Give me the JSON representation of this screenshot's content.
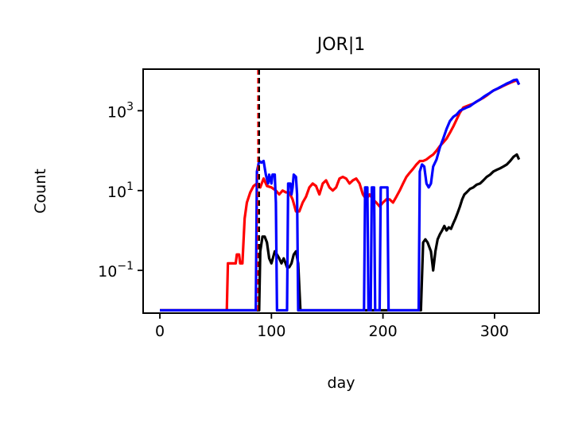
{
  "chart_data": {
    "type": "line",
    "title": "JOR|1",
    "xlabel": "day",
    "ylabel": "Count",
    "xlim": [
      -15,
      340
    ],
    "ylim": [
      0.0085,
      11000
    ],
    "yscale": "log",
    "xticks": [
      {
        "value": 0,
        "label": "0"
      },
      {
        "value": 100,
        "label": "100"
      },
      {
        "value": 200,
        "label": "200"
      },
      {
        "value": 300,
        "label": "300"
      }
    ],
    "yticks": [
      {
        "value": 0.1,
        "base": "10",
        "exp": "−1"
      },
      {
        "value": 10,
        "base": "10",
        "exp": "1"
      },
      {
        "value": 1000,
        "base": "10",
        "exp": "3"
      }
    ],
    "vlines": [
      {
        "x": 88,
        "color": "#ff0000",
        "style": "dashed"
      },
      {
        "x": 89,
        "color": "#000000",
        "style": "dashed"
      }
    ],
    "series": [
      {
        "color": "#ff0000",
        "points": [
          [
            0,
            0.01
          ],
          [
            60,
            0.01
          ],
          [
            61,
            0.15
          ],
          [
            68,
            0.15
          ],
          [
            69,
            0.25
          ],
          [
            71,
            0.25
          ],
          [
            72,
            0.15
          ],
          [
            74,
            0.15
          ],
          [
            76,
            2
          ],
          [
            78,
            5
          ],
          [
            81,
            9
          ],
          [
            84,
            13
          ],
          [
            87,
            15
          ],
          [
            90,
            12
          ],
          [
            93,
            20
          ],
          [
            96,
            13
          ],
          [
            100,
            12
          ],
          [
            104,
            10
          ],
          [
            107,
            8
          ],
          [
            110,
            10
          ],
          [
            113,
            9
          ],
          [
            116,
            9
          ],
          [
            119,
            6
          ],
          [
            122,
            3
          ],
          [
            125,
            3
          ],
          [
            128,
            5
          ],
          [
            131,
            7
          ],
          [
            134,
            12
          ],
          [
            137,
            15
          ],
          [
            140,
            13
          ],
          [
            143,
            8
          ],
          [
            146,
            15
          ],
          [
            149,
            18
          ],
          [
            152,
            12
          ],
          [
            155,
            10
          ],
          [
            158,
            12
          ],
          [
            161,
            20
          ],
          [
            164,
            22
          ],
          [
            167,
            20
          ],
          [
            170,
            15
          ],
          [
            173,
            18
          ],
          [
            176,
            20
          ],
          [
            179,
            15
          ],
          [
            182,
            8
          ],
          [
            185,
            6
          ],
          [
            188,
            8
          ],
          [
            191,
            6
          ],
          [
            194,
            5
          ],
          [
            197,
            4
          ],
          [
            200,
            5
          ],
          [
            203,
            6
          ],
          [
            206,
            6
          ],
          [
            209,
            5
          ],
          [
            212,
            7
          ],
          [
            215,
            10
          ],
          [
            218,
            15
          ],
          [
            221,
            22
          ],
          [
            224,
            28
          ],
          [
            227,
            35
          ],
          [
            230,
            45
          ],
          [
            233,
            55
          ],
          [
            236,
            55
          ],
          [
            239,
            60
          ],
          [
            242,
            70
          ],
          [
            245,
            80
          ],
          [
            248,
            100
          ],
          [
            251,
            130
          ],
          [
            254,
            160
          ],
          [
            257,
            200
          ],
          [
            260,
            280
          ],
          [
            263,
            400
          ],
          [
            266,
            600
          ],
          [
            269,
            900
          ],
          [
            272,
            1200
          ],
          [
            275,
            1300
          ],
          [
            278,
            1400
          ],
          [
            281,
            1500
          ],
          [
            284,
            1700
          ],
          [
            287,
            1900
          ],
          [
            290,
            2100
          ],
          [
            293,
            2400
          ],
          [
            296,
            2800
          ],
          [
            299,
            3200
          ],
          [
            302,
            3500
          ],
          [
            305,
            3800
          ],
          [
            308,
            4200
          ],
          [
            311,
            4600
          ],
          [
            314,
            5000
          ],
          [
            317,
            5400
          ],
          [
            320,
            5800
          ],
          [
            322,
            4500
          ]
        ]
      },
      {
        "color": "#000000",
        "points": [
          [
            0,
            0.01
          ],
          [
            89,
            0.01
          ],
          [
            90,
            0.3
          ],
          [
            92,
            0.7
          ],
          [
            94,
            0.7
          ],
          [
            96,
            0.5
          ],
          [
            98,
            0.2
          ],
          [
            100,
            0.15
          ],
          [
            103,
            0.3
          ],
          [
            105,
            0.25
          ],
          [
            107,
            0.2
          ],
          [
            109,
            0.15
          ],
          [
            111,
            0.2
          ],
          [
            114,
            0.12
          ],
          [
            116,
            0.12
          ],
          [
            118,
            0.15
          ],
          [
            120,
            0.25
          ],
          [
            122,
            0.3
          ],
          [
            124,
            0.15
          ],
          [
            126,
            0.01
          ],
          [
            234,
            0.01
          ],
          [
            236,
            0.5
          ],
          [
            238,
            0.6
          ],
          [
            240,
            0.5
          ],
          [
            243,
            0.3
          ],
          [
            245,
            0.1
          ],
          [
            247,
            0.3
          ],
          [
            249,
            0.6
          ],
          [
            251,
            0.8
          ],
          [
            253,
            1.0
          ],
          [
            255,
            1.3
          ],
          [
            257,
            1.0
          ],
          [
            259,
            1.2
          ],
          [
            261,
            1.1
          ],
          [
            263,
            1.5
          ],
          [
            265,
            2.0
          ],
          [
            267,
            2.8
          ],
          [
            269,
            4
          ],
          [
            271,
            6
          ],
          [
            273,
            8
          ],
          [
            275,
            9
          ],
          [
            278,
            11
          ],
          [
            281,
            12
          ],
          [
            284,
            14
          ],
          [
            287,
            15
          ],
          [
            290,
            18
          ],
          [
            293,
            22
          ],
          [
            296,
            25
          ],
          [
            299,
            30
          ],
          [
            302,
            33
          ],
          [
            305,
            36
          ],
          [
            308,
            40
          ],
          [
            311,
            45
          ],
          [
            314,
            55
          ],
          [
            317,
            70
          ],
          [
            320,
            80
          ],
          [
            322,
            60
          ]
        ]
      },
      {
        "color": "#0000ff",
        "points": [
          [
            0,
            0.01
          ],
          [
            86,
            0.01
          ],
          [
            87,
            30
          ],
          [
            89,
            55
          ],
          [
            91,
            50
          ],
          [
            93,
            55
          ],
          [
            95,
            25
          ],
          [
            97,
            15
          ],
          [
            98,
            25
          ],
          [
            100,
            15
          ],
          [
            101,
            25
          ],
          [
            103,
            25
          ],
          [
            104,
            5
          ],
          [
            105,
            0.01
          ],
          [
            114,
            0.01
          ],
          [
            115,
            15
          ],
          [
            117,
            15
          ],
          [
            118,
            8
          ],
          [
            119,
            12
          ],
          [
            120,
            25
          ],
          [
            122,
            22
          ],
          [
            123,
            8
          ],
          [
            124,
            0.01
          ],
          [
            183,
            0.01
          ],
          [
            184,
            12
          ],
          [
            186,
            12
          ],
          [
            187,
            0.01
          ],
          [
            189,
            0.01
          ],
          [
            190,
            12
          ],
          [
            192,
            12
          ],
          [
            193,
            0.01
          ],
          [
            197,
            0.01
          ],
          [
            198,
            12
          ],
          [
            204,
            12
          ],
          [
            205,
            0.01
          ],
          [
            232,
            0.01
          ],
          [
            233,
            30
          ],
          [
            235,
            45
          ],
          [
            237,
            40
          ],
          [
            239,
            15
          ],
          [
            241,
            12
          ],
          [
            243,
            15
          ],
          [
            245,
            40
          ],
          [
            248,
            60
          ],
          [
            251,
            120
          ],
          [
            254,
            200
          ],
          [
            257,
            350
          ],
          [
            260,
            550
          ],
          [
            263,
            700
          ],
          [
            266,
            800
          ],
          [
            269,
            1000
          ],
          [
            272,
            1100
          ],
          [
            275,
            1200
          ],
          [
            278,
            1300
          ],
          [
            281,
            1500
          ],
          [
            284,
            1700
          ],
          [
            287,
            1900
          ],
          [
            290,
            2200
          ],
          [
            293,
            2500
          ],
          [
            296,
            2800
          ],
          [
            299,
            3200
          ],
          [
            302,
            3500
          ],
          [
            305,
            3900
          ],
          [
            308,
            4300
          ],
          [
            311,
            4800
          ],
          [
            314,
            5200
          ],
          [
            317,
            5800
          ],
          [
            320,
            6000
          ],
          [
            322,
            4500
          ]
        ]
      }
    ]
  }
}
